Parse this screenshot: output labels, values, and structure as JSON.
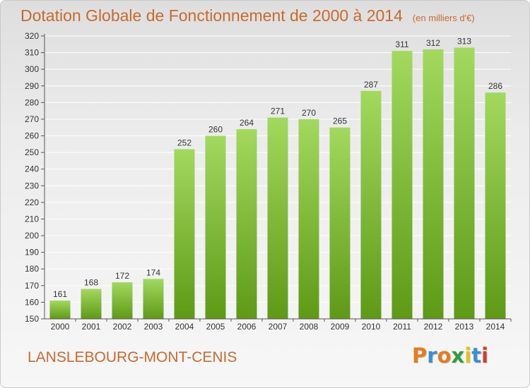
{
  "header": {
    "title": "Dotation Globale de Fonctionnement de 2000 à 2014",
    "subtitle": "(en milliers d'€)"
  },
  "footer": {
    "commune": "LANSLEBOURG-MONT-CENIS",
    "logo_text": "Proxiti",
    "logo_colors": [
      "#e67b1e",
      "#3a8fd6",
      "#e67b1e",
      "#2f9e3a",
      "#e3c21a",
      "#3a8fd6",
      "#d93a2a"
    ]
  },
  "colors": {
    "title": "#c86a2d",
    "bar_light": "#9fd65a",
    "bar_dark": "#5e9a16",
    "grid": "#ffffff",
    "axis": "#555555"
  },
  "chart_data": {
    "type": "bar",
    "categories": [
      "2000",
      "2001",
      "2002",
      "2003",
      "2004",
      "2005",
      "2006",
      "2007",
      "2008",
      "2009",
      "2010",
      "2011",
      "2012",
      "2013",
      "2014"
    ],
    "values": [
      161,
      168,
      172,
      174,
      252,
      260,
      264,
      271,
      270,
      265,
      287,
      311,
      312,
      313,
      286
    ],
    "yticks": [
      150,
      160,
      170,
      180,
      190,
      200,
      210,
      220,
      230,
      240,
      250,
      260,
      270,
      280,
      290,
      300,
      310,
      320
    ],
    "ylim": [
      150,
      320
    ],
    "grid": true
  }
}
